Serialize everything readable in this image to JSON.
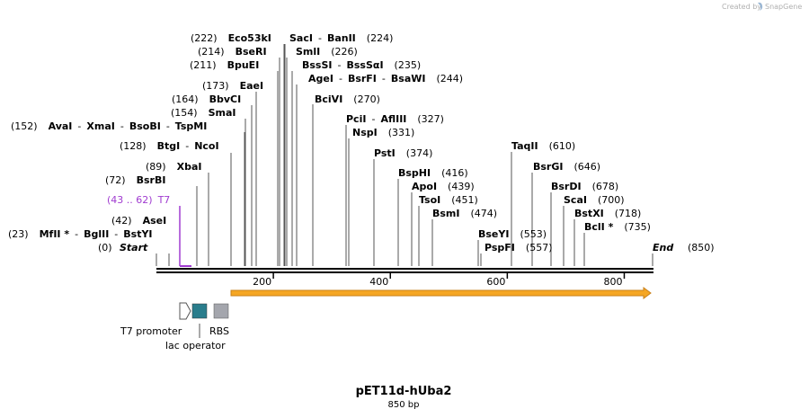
{
  "branding": {
    "created_by": "Created by",
    "app_name": "SnapGene"
  },
  "plasmid": {
    "name": "pET11d-hUba2",
    "length_label": "850 bp",
    "length": 850
  },
  "ruler": {
    "ticks": [
      "200",
      "400",
      "600",
      "800"
    ]
  },
  "ends": {
    "start_pos": "(0)",
    "start_label": "Start",
    "end_label": "End",
    "end_pos": "(850)"
  },
  "feature_t7": {
    "range": "(43 .. 62)",
    "name": "T7",
    "color": "#a03bd0"
  },
  "orf_color": "#f5a623",
  "legend": {
    "t7_promoter": "T7 promoter",
    "lac_operator": "lac operator",
    "rbs": "RBS",
    "lac_color": "#2a7d8c",
    "rbs_color": "#a4a6ad"
  },
  "sites": [
    {
      "parts": [
        {
          "t": "(23)",
          "b": false
        },
        {
          "t": "MfII *",
          "b": true
        },
        {
          "t": "-",
          "b": false
        },
        {
          "t": "BglII",
          "b": true
        },
        {
          "t": "-",
          "b": false
        },
        {
          "t": "BstYI",
          "b": true
        }
      ]
    },
    {
      "parts": [
        {
          "t": "(42)",
          "b": false
        },
        {
          "t": "AseI",
          "b": true
        }
      ]
    },
    {
      "parts": [
        {
          "t": "(72)",
          "b": false
        },
        {
          "t": "BsrBI",
          "b": true
        }
      ]
    },
    {
      "parts": [
        {
          "t": "(89)",
          "b": false
        },
        {
          "t": "XbaI",
          "b": true
        }
      ]
    },
    {
      "parts": [
        {
          "t": "(128)",
          "b": false
        },
        {
          "t": "BtgI",
          "b": true
        },
        {
          "t": "-",
          "b": false
        },
        {
          "t": "NcoI",
          "b": true
        }
      ]
    },
    {
      "parts": [
        {
          "t": "(152)",
          "b": false
        },
        {
          "t": "AvaI",
          "b": true
        },
        {
          "t": "-",
          "b": false
        },
        {
          "t": "XmaI",
          "b": true
        },
        {
          "t": "-",
          "b": false
        },
        {
          "t": "BsoBI",
          "b": true
        },
        {
          "t": "-",
          "b": false
        },
        {
          "t": "TspMI",
          "b": true
        }
      ]
    },
    {
      "parts": [
        {
          "t": "(154)",
          "b": false
        },
        {
          "t": "SmaI",
          "b": true
        }
      ]
    },
    {
      "parts": [
        {
          "t": "(164)",
          "b": false
        },
        {
          "t": "BbvCI",
          "b": true
        }
      ]
    },
    {
      "parts": [
        {
          "t": "(173)",
          "b": false
        },
        {
          "t": "EaeI",
          "b": true
        }
      ]
    },
    {
      "parts": [
        {
          "t": "(211)",
          "b": false
        },
        {
          "t": "BpuEI",
          "b": true
        }
      ]
    },
    {
      "parts": [
        {
          "t": "(214)",
          "b": false
        },
        {
          "t": "BseRI",
          "b": true
        }
      ]
    },
    {
      "parts": [
        {
          "t": "(222)",
          "b": false
        },
        {
          "t": "Eco53kI",
          "b": true
        }
      ]
    },
    {
      "parts": [
        {
          "t": "SacI",
          "b": true
        },
        {
          "t": "-",
          "b": false
        },
        {
          "t": "BanII",
          "b": true
        },
        {
          "t": "(224)",
          "b": false
        }
      ]
    },
    {
      "parts": [
        {
          "t": "SmlI",
          "b": true
        },
        {
          "t": "(226)",
          "b": false
        }
      ]
    },
    {
      "parts": [
        {
          "t": "BssSI",
          "b": true
        },
        {
          "t": "-",
          "b": false
        },
        {
          "t": "BssSαI",
          "b": true
        },
        {
          "t": "(235)",
          "b": false
        }
      ]
    },
    {
      "parts": [
        {
          "t": "AgeI",
          "b": true
        },
        {
          "t": "-",
          "b": false
        },
        {
          "t": "BsrFI",
          "b": true
        },
        {
          "t": "-",
          "b": false
        },
        {
          "t": "BsaWI",
          "b": true
        },
        {
          "t": "(244)",
          "b": false
        }
      ]
    },
    {
      "parts": [
        {
          "t": "BciVI",
          "b": true
        },
        {
          "t": "(270)",
          "b": false
        }
      ]
    },
    {
      "parts": [
        {
          "t": "PciI",
          "b": true
        },
        {
          "t": "-",
          "b": false
        },
        {
          "t": "AflIII",
          "b": true
        },
        {
          "t": "(327)",
          "b": false
        }
      ]
    },
    {
      "parts": [
        {
          "t": "NspI",
          "b": true
        },
        {
          "t": "(331)",
          "b": false
        }
      ]
    },
    {
      "parts": [
        {
          "t": "PstI",
          "b": true
        },
        {
          "t": "(374)",
          "b": false
        }
      ]
    },
    {
      "parts": [
        {
          "t": "BspHI",
          "b": true
        },
        {
          "t": "(416)",
          "b": false
        }
      ]
    },
    {
      "parts": [
        {
          "t": "ApoI",
          "b": true
        },
        {
          "t": "(439)",
          "b": false
        }
      ]
    },
    {
      "parts": [
        {
          "t": "TsoI",
          "b": true
        },
        {
          "t": "(451)",
          "b": false
        }
      ]
    },
    {
      "parts": [
        {
          "t": "BsmI",
          "b": true
        },
        {
          "t": "(474)",
          "b": false
        }
      ]
    },
    {
      "parts": [
        {
          "t": "BseYI",
          "b": true
        },
        {
          "t": "(553)",
          "b": false
        }
      ]
    },
    {
      "parts": [
        {
          "t": "PspFI",
          "b": true
        },
        {
          "t": "(557)",
          "b": false
        }
      ]
    },
    {
      "parts": [
        {
          "t": "TaqII",
          "b": true
        },
        {
          "t": "(610)",
          "b": false
        }
      ]
    },
    {
      "parts": [
        {
          "t": "BsrGI",
          "b": true
        },
        {
          "t": "(646)",
          "b": false
        }
      ]
    },
    {
      "parts": [
        {
          "t": "BsrDI",
          "b": true
        },
        {
          "t": "(678)",
          "b": false
        }
      ]
    },
    {
      "parts": [
        {
          "t": "ScaI",
          "b": true
        },
        {
          "t": "(700)",
          "b": false
        }
      ]
    },
    {
      "parts": [
        {
          "t": "BstXI",
          "b": true
        },
        {
          "t": "(718)",
          "b": false
        }
      ]
    },
    {
      "parts": [
        {
          "t": "BclI *",
          "b": true
        },
        {
          "t": "(735)",
          "b": false
        }
      ]
    }
  ]
}
